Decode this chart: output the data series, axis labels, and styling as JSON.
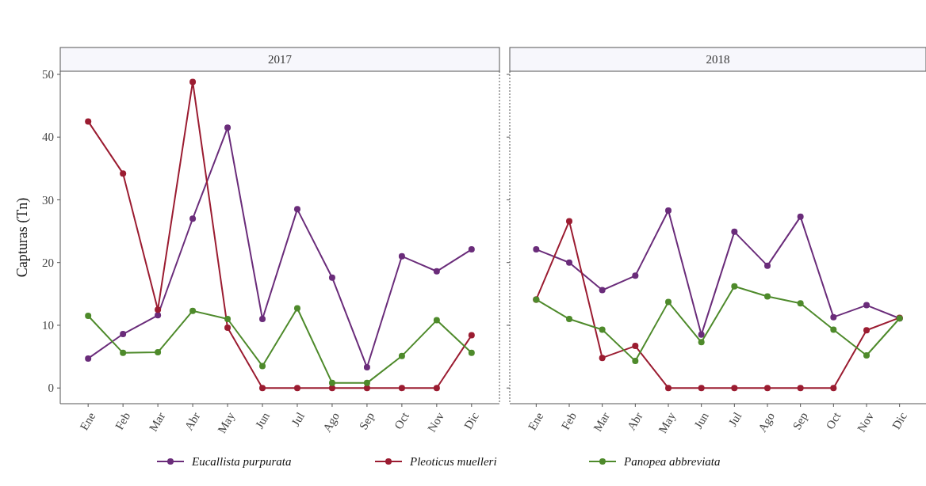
{
  "chart_data": [
    {
      "type": "line",
      "title": "2017",
      "ylabel": "Capturas (Tn)",
      "categories": [
        "Ene",
        "Feb",
        "Mar",
        "Abr",
        "May",
        "Jun",
        "Jul",
        "Ago",
        "Sep",
        "Oct",
        "Nov",
        "Dic"
      ],
      "ylim": [
        -2.5,
        50.5
      ],
      "yticks": [
        0,
        10,
        20,
        30,
        40,
        50
      ],
      "grid": false,
      "marker": "circle",
      "legend": "bottom",
      "series": [
        {
          "name": "Eucallista purpurata",
          "color": "#6a2c7a",
          "values": [
            4.7,
            8.6,
            11.6,
            27,
            41.5,
            11,
            28.5,
            17.6,
            3.3,
            21,
            18.6,
            22.1
          ]
        },
        {
          "name": "Pleoticus muelleri",
          "color": "#9b1c31",
          "values": [
            42.5,
            34.2,
            12.5,
            48.8,
            9.6,
            0,
            0,
            0,
            0,
            0,
            0,
            8.4
          ]
        },
        {
          "name": "Panopea abbreviata",
          "color": "#4e8a2b",
          "values": [
            11.5,
            5.6,
            5.7,
            12.3,
            11,
            3.5,
            12.7,
            0.8,
            0.8,
            5.1,
            10.8,
            5.6
          ]
        }
      ]
    },
    {
      "type": "line",
      "title": "2018",
      "categories": [
        "Ene",
        "Feb",
        "Mar",
        "Abr",
        "May",
        "Jun",
        "Jul",
        "Ago",
        "Sep",
        "Oct",
        "Nov",
        "Dic"
      ],
      "ylim": [
        -2.5,
        50.5
      ],
      "yticks": [
        0,
        10,
        20,
        30,
        40,
        50
      ],
      "tick_labels": "x",
      "grid": false,
      "marker": "circle",
      "series": [
        {
          "color": "#6a2c7a",
          "values": [
            22.1,
            20,
            15.6,
            17.9,
            28.3,
            8.5,
            24.9,
            19.5,
            27.3,
            11.3,
            13.2,
            11.1
          ]
        },
        {
          "color": "#9b1c31",
          "values": [
            14.1,
            26.6,
            4.8,
            6.7,
            0,
            0,
            0,
            0,
            0,
            0,
            9.2,
            11.2
          ]
        },
        {
          "color": "#4e8a2b",
          "values": [
            14.1,
            11,
            9.3,
            4.3,
            13.7,
            7.3,
            16.2,
            14.6,
            13.5,
            9.3,
            5.2,
            11.1
          ]
        }
      ]
    }
  ]
}
